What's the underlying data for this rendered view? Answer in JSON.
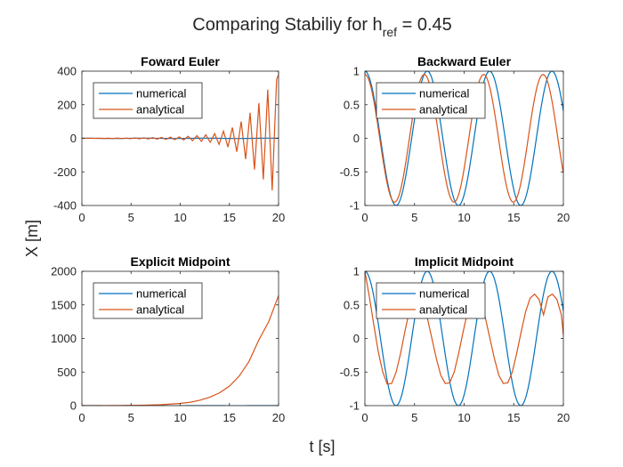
{
  "figure": {
    "title_main": "Comparing Stabiliy for h",
    "title_sub": "ref",
    "title_tail": " = 0.45",
    "xlabel": "t [s]",
    "ylabel": "X [m]"
  },
  "colors": {
    "numerical": "#0072BD",
    "analytical": "#D95319",
    "axes": "#262626",
    "grid_bg": "#ffffff"
  },
  "chart_data": [
    {
      "type": "line",
      "title": "Foward Euler",
      "xlim": [
        0,
        20
      ],
      "ylim": [
        -400,
        400
      ],
      "xticks": [
        0,
        5,
        10,
        15,
        20
      ],
      "yticks": [
        -400,
        -200,
        0,
        200,
        400
      ],
      "legend": {
        "entries": [
          "numerical",
          "analytical"
        ],
        "placement": "top-left"
      },
      "series": [
        {
          "name": "numerical",
          "kind": "function",
          "expr": "cos",
          "x_range": [
            0,
            20
          ],
          "samples": 400
        },
        {
          "name": "analytical",
          "kind": "oscillation",
          "x": [
            0,
            0.45,
            0.9,
            1.35,
            1.8,
            2.25,
            2.7,
            3.15,
            3.6,
            4.05,
            4.5,
            4.95,
            5.4,
            5.85,
            6.3,
            6.75,
            7.2,
            7.65,
            8.1,
            8.55,
            9,
            9.45,
            9.9,
            10.35,
            10.8,
            11.25,
            11.7,
            12.15,
            12.6,
            13.05,
            13.5,
            13.95,
            14.4,
            14.85,
            15.3,
            15.75,
            16.2,
            16.65,
            17.1,
            17.55,
            18,
            18.45,
            18.9,
            19.35,
            19.8,
            20
          ],
          "y": [
            0.1,
            -0.2,
            0.3,
            -0.4,
            0.5,
            -0.6,
            0.8,
            -1,
            1.2,
            -1.4,
            1.6,
            -1.9,
            2.2,
            -2.6,
            3,
            -3.5,
            4,
            -4.6,
            5.3,
            -6,
            7,
            -8,
            9,
            -10,
            12,
            -14,
            16,
            -18,
            21,
            -24,
            28,
            -36,
            43,
            -52,
            64,
            -80,
            100,
            -124,
            152,
            -186,
            210,
            -245,
            290,
            -310,
            350,
            380
          ]
        }
      ]
    },
    {
      "type": "line",
      "title": "Backward Euler",
      "xlim": [
        0,
        20
      ],
      "ylim": [
        -1,
        1
      ],
      "xticks": [
        0,
        5,
        10,
        15,
        20
      ],
      "yticks": [
        -1,
        -0.5,
        0,
        0.5,
        1
      ],
      "legend": {
        "entries": [
          "numerical",
          "analytical"
        ],
        "placement": "top-left"
      },
      "series": [
        {
          "name": "numerical",
          "kind": "function",
          "expr": "cos",
          "x_range": [
            0,
            20
          ],
          "samples": 400
        },
        {
          "name": "analytical",
          "kind": "function",
          "expr": "cos_phase",
          "amplitude": 0.95,
          "omega": 1.05,
          "x_range": [
            0,
            20
          ],
          "samples": 400
        }
      ]
    },
    {
      "type": "line",
      "title": "Explicit Midpoint",
      "xlim": [
        0,
        20
      ],
      "ylim": [
        0,
        2000
      ],
      "xticks": [
        0,
        5,
        10,
        15,
        20
      ],
      "yticks": [
        0,
        500,
        1000,
        1500,
        2000
      ],
      "legend": {
        "entries": [
          "numerical",
          "analytical"
        ],
        "placement": "top-left"
      },
      "series": [
        {
          "name": "numerical",
          "kind": "function",
          "expr": "cos",
          "x_range": [
            0,
            20
          ],
          "samples": 400
        },
        {
          "name": "analytical",
          "kind": "points",
          "x": [
            0,
            2,
            4,
            6,
            8,
            10,
            11,
            12,
            13,
            14,
            15,
            16,
            17,
            18,
            19,
            20
          ],
          "y": [
            1,
            1,
            2,
            5,
            13,
            33,
            50,
            80,
            125,
            190,
            290,
            440,
            660,
            980,
            1250,
            1640
          ]
        }
      ]
    },
    {
      "type": "line",
      "title": "Implicit Midpoint",
      "xlim": [
        0,
        20
      ],
      "ylim": [
        -1,
        1
      ],
      "xticks": [
        0,
        5,
        10,
        15,
        20
      ],
      "yticks": [
        -1,
        -0.5,
        0,
        0.5,
        1
      ],
      "legend": {
        "entries": [
          "numerical",
          "analytical"
        ],
        "placement": "top-left"
      },
      "series": [
        {
          "name": "numerical",
          "kind": "function",
          "expr": "cos",
          "x_range": [
            0,
            20
          ],
          "samples": 400
        },
        {
          "name": "analytical",
          "kind": "points",
          "x": [
            0,
            0.45,
            0.9,
            1.35,
            1.8,
            2.25,
            2.7,
            3.15,
            3.6,
            4.05,
            4.5,
            4.95,
            5.4,
            5.85,
            6.3,
            6.75,
            7.2,
            7.65,
            8.1,
            8.55,
            9,
            9.45,
            9.9,
            10.35,
            10.8,
            11.25,
            11.7,
            12.15,
            12.6,
            13.05,
            13.5,
            13.95,
            14.4,
            14.85,
            15.3,
            15.75,
            16.2,
            16.65,
            17.1,
            17.55,
            18,
            18.45,
            18.9,
            19.35,
            19.8,
            20
          ],
          "y": [
            1,
            0.62,
            0.2,
            -0.2,
            -0.5,
            -0.68,
            -0.67,
            -0.5,
            -0.22,
            0.12,
            0.42,
            0.62,
            0.66,
            0.55,
            0.3,
            0.0,
            -0.3,
            -0.55,
            -0.67,
            -0.66,
            -0.5,
            -0.22,
            0.1,
            0.4,
            0.6,
            0.66,
            0.55,
            0.3,
            0.0,
            -0.3,
            -0.55,
            -0.67,
            -0.66,
            -0.5,
            -0.22,
            0.1,
            0.4,
            0.6,
            0.66,
            0.58,
            0.35,
            0.62,
            0.66,
            0.58,
            0.35,
            0.05
          ]
        }
      ]
    }
  ]
}
